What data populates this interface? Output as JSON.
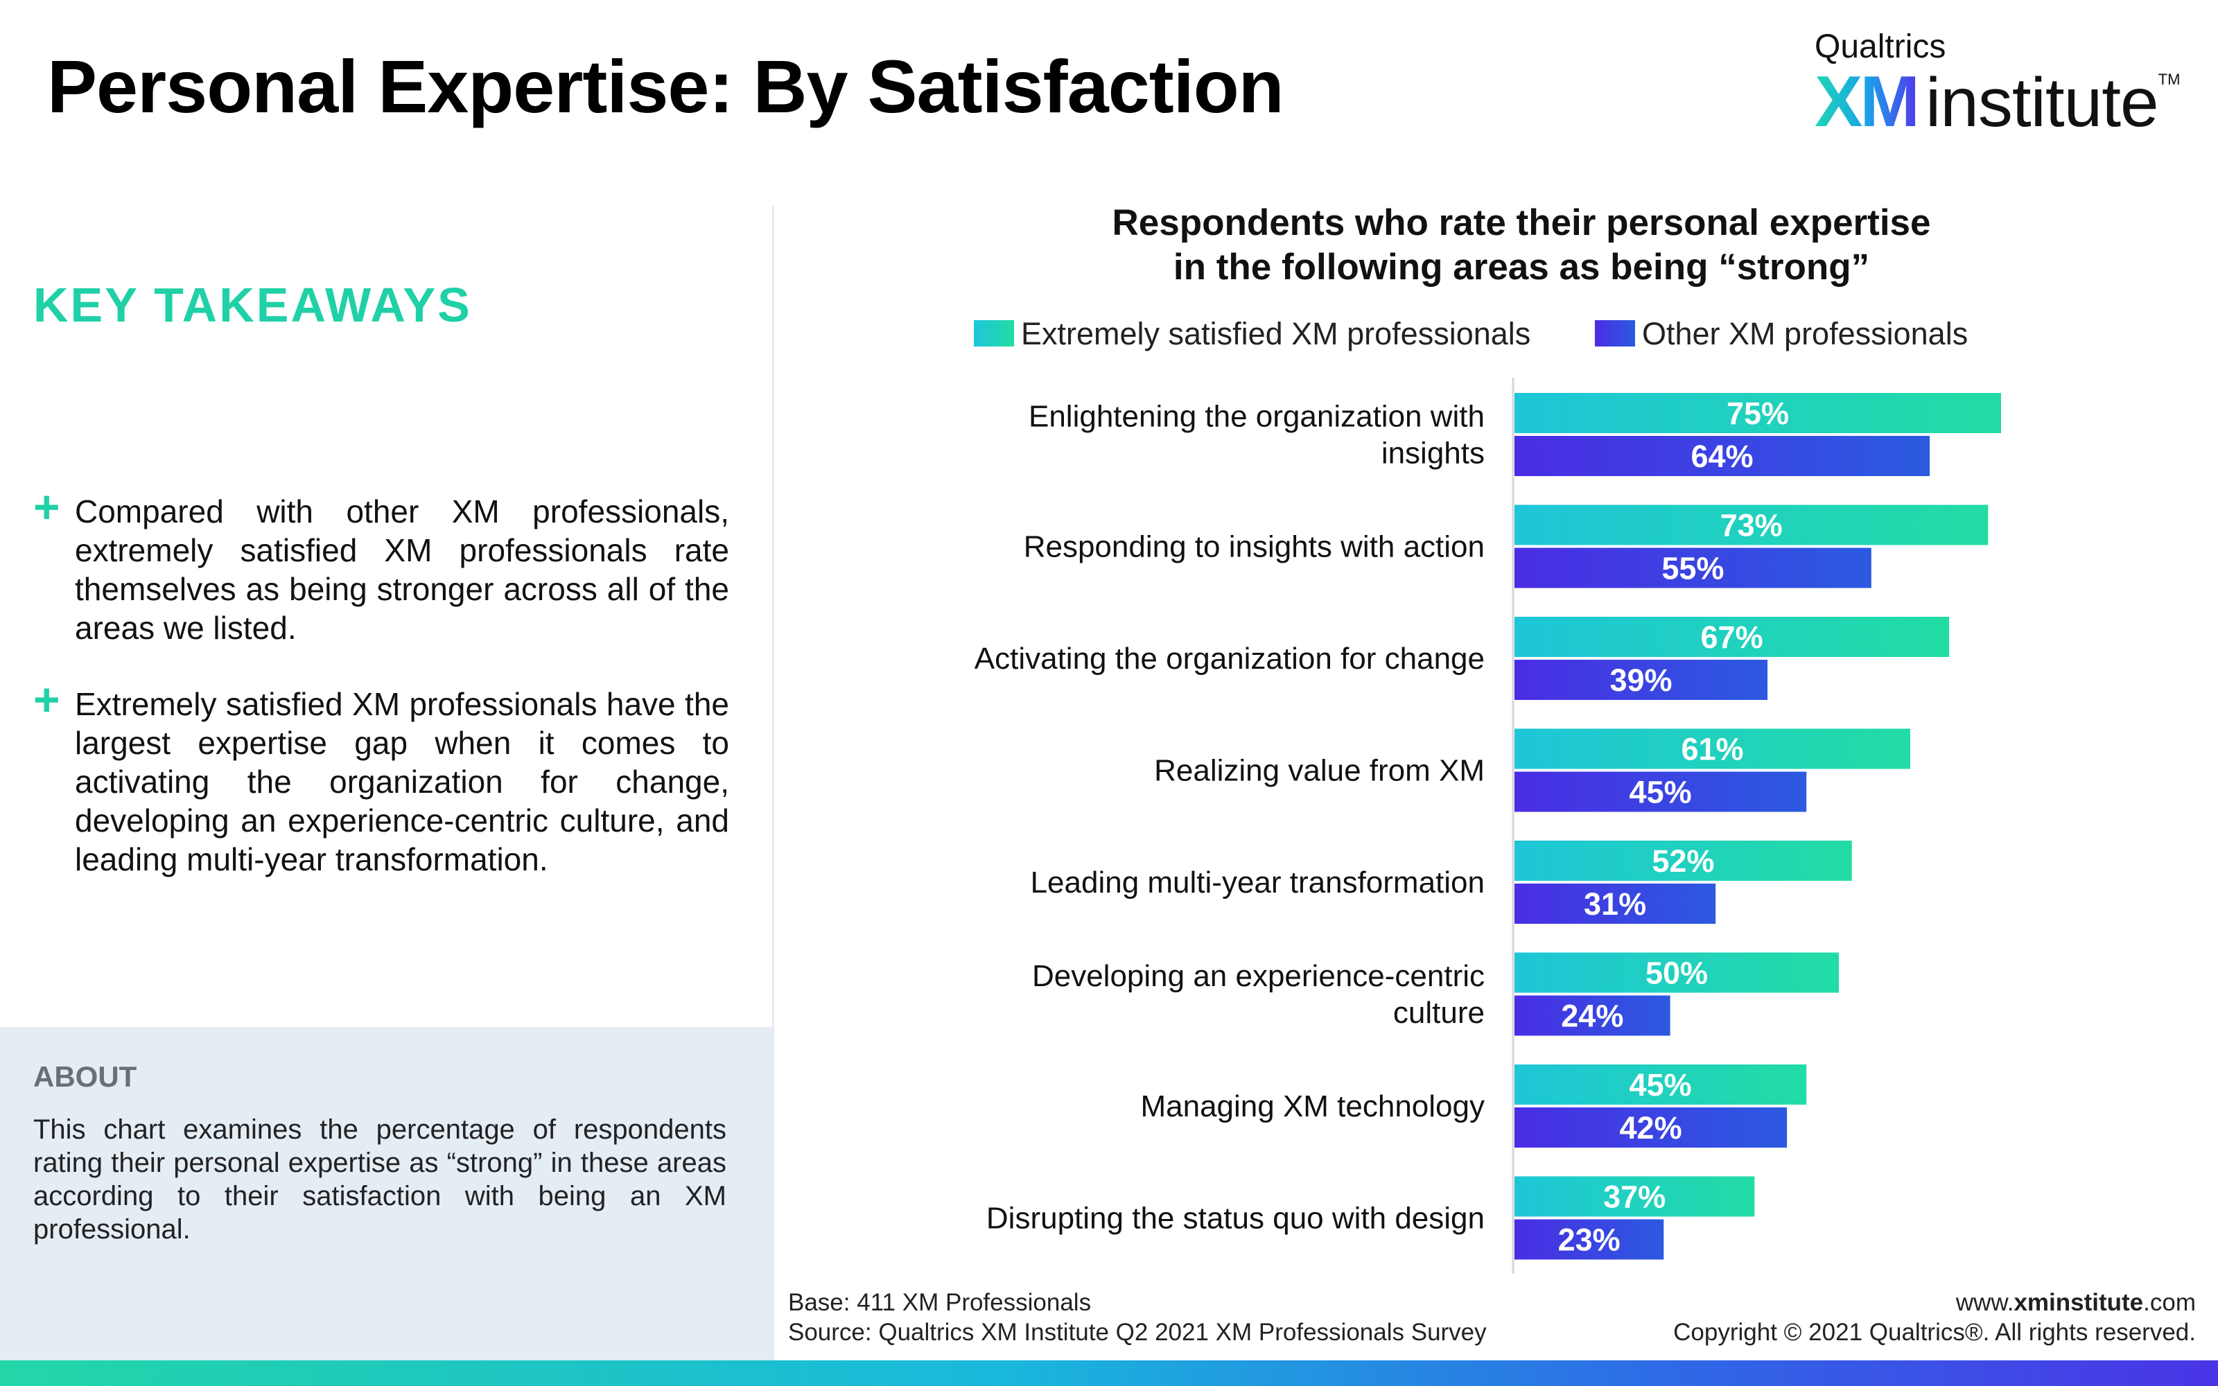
{
  "page": {
    "title": "Personal Expertise: By Satisfaction"
  },
  "logo": {
    "top": "Qualtrics",
    "xm": "XM",
    "institute": "institute",
    "tm": "TM"
  },
  "takeaways": {
    "heading": "KEY TAKEAWAYS",
    "items": [
      {
        "bullet": "+",
        "text": "Compared with other XM professionals, extremely satisfied XM professionals rate themselves as being stronger across all of the areas we listed."
      },
      {
        "bullet": "+",
        "text": "Extremely satisfied XM professionals have the largest expertise gap when it comes to activating the organization for change, developing an experience-centric culture, and leading multi-year transformation."
      }
    ]
  },
  "about": {
    "heading": "ABOUT",
    "text": "This chart examines the percentage of respondents rating their personal expertise as “strong” in these areas according to their satisfaction with being an XM professional."
  },
  "footer": {
    "base": "Base: 411 XM Professionals",
    "source": "Source: Qualtrics XM Institute Q2 2021 XM Professionals Survey",
    "url_prefix": "www.",
    "url_bold": "xminstitute",
    "url_suffix": ".com",
    "copyright": "Copyright © 2021 Qualtrics®. All rights reserved."
  },
  "colors": {
    "accent_green": "#20d0a7",
    "series1_start": "#1ec6d8",
    "series1_end": "#22dca4",
    "series2_start": "#4a2de4",
    "series2_end": "#2b5ae0"
  },
  "chart_data": {
    "type": "bar",
    "orientation": "horizontal",
    "title": "Respondents who rate their personal expertise in the following areas as being “strong”",
    "title_lines": [
      "Respondents who rate their personal expertise",
      "in the following areas as being “strong”"
    ],
    "legend_position": "top",
    "unit": "%",
    "xlim": [
      0,
      100
    ],
    "grid": false,
    "categories": [
      "Enlightening the organization with insights",
      "Responding to insights with action",
      "Activating the organization for change",
      "Realizing value from XM",
      "Leading multi-year transformation",
      "Developing an experience-centric culture",
      "Managing XM technology",
      "Disrupting the status quo with design"
    ],
    "category_lines": [
      [
        "Enlightening the organization with",
        "insights"
      ],
      [
        "Responding to insights with action"
      ],
      [
        "Activating the organization for change"
      ],
      [
        "Realizing value from XM"
      ],
      [
        "Leading multi-year transformation"
      ],
      [
        "Developing an experience-centric",
        "culture"
      ],
      [
        "Managing XM technology"
      ],
      [
        "Disrupting the status quo with design"
      ]
    ],
    "series": [
      {
        "name": "Extremely satisfied XM professionals",
        "values": [
          75,
          73,
          67,
          61,
          52,
          50,
          45,
          37
        ]
      },
      {
        "name": "Other XM professionals",
        "values": [
          64,
          55,
          39,
          45,
          31,
          24,
          42,
          23
        ]
      }
    ]
  }
}
